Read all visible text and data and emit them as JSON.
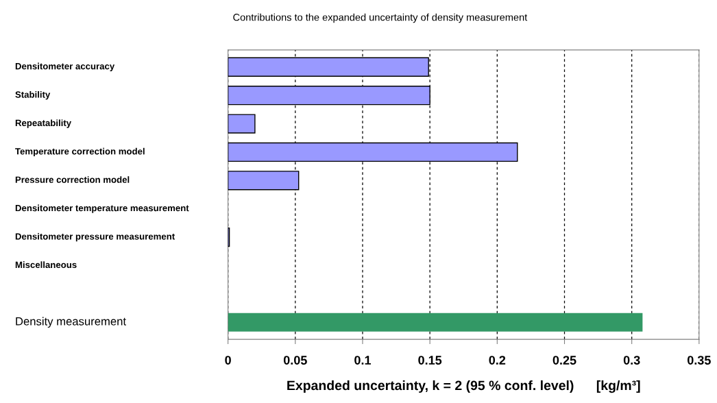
{
  "chart_data": {
    "type": "bar",
    "orientation": "horizontal",
    "title": "Contributions to the expanded uncertainty of density measurement",
    "xlabel": "Expanded uncertainty, k = 2 (95 % conf. level)      [kg/m³]",
    "categories": [
      "Densitometer accuracy",
      "Stability",
      "Repeatability",
      "Temperature correction model",
      "Pressure correction model",
      "Densitometer temperature measurement",
      "Densitometer pressure measurement",
      "Miscellaneous",
      null,
      "Density measurement"
    ],
    "values": [
      0.149,
      0.15,
      0.02,
      0.215,
      0.0525,
      0,
      0.001,
      0,
      null,
      0.308
    ],
    "colors": [
      "#9999ff",
      "#9999ff",
      "#9999ff",
      "#9999ff",
      "#9999ff",
      "#9999ff",
      "#9999ff",
      "#9999ff",
      "#9999ff",
      "#339966"
    ],
    "xlim": [
      0,
      0.35
    ],
    "xticks": [
      0,
      0.05,
      0.1,
      0.15,
      0.2,
      0.25,
      0.3,
      0.35
    ],
    "grid": "x",
    "line_style": "dashed"
  }
}
